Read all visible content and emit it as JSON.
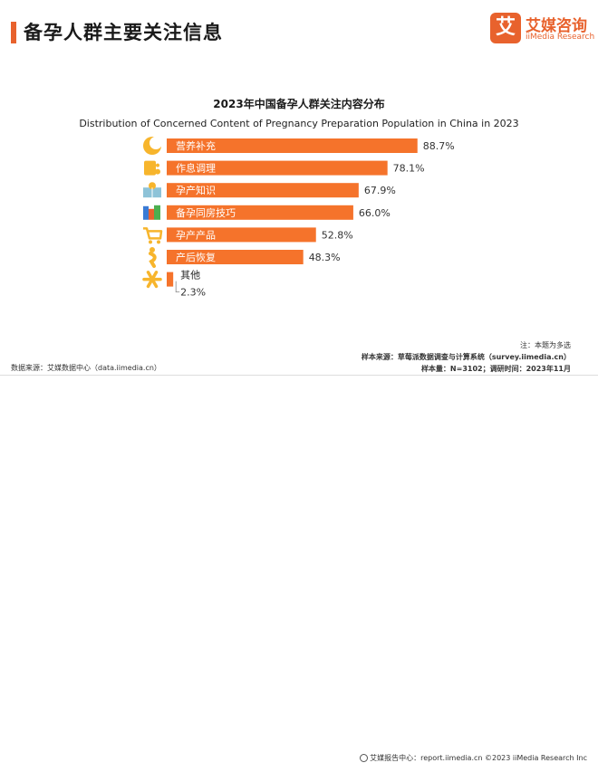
{
  "header": {
    "title": "备孕人群主要关注信息",
    "logo_mark": "艾",
    "logo_cn": "艾媒咨询",
    "logo_en": "iiMedia Research"
  },
  "colors": {
    "accent": "#e8622d",
    "bar": "#f5732b",
    "icon": "#f7b52c",
    "text": "#222222"
  },
  "chart_data": {
    "type": "bar",
    "orientation": "horizontal",
    "title": "2023年中国备孕人群关注内容分布",
    "subtitle": "Distribution of Concerned Content of Pregnancy Preparation Population in China in 2023",
    "categories": [
      "营养补充",
      "作息调理",
      "孕产知识",
      "备孕同房技巧",
      "孕产产品",
      "产后恢复",
      "其他"
    ],
    "values": [
      88.7,
      78.1,
      67.9,
      66.0,
      52.8,
      48.3,
      2.3
    ],
    "data_labels": [
      "88.7%",
      "78.1%",
      "67.9%",
      "66.0%",
      "52.8%",
      "48.3%",
      "2.3%"
    ],
    "icons": [
      "moon-food-icon",
      "clock-schedule-icon",
      "book-knowledge-icon",
      "books-icon",
      "shopping-cart-icon",
      "recovery-figure-icon",
      "asterisk-icon"
    ],
    "xlim": [
      0,
      100
    ],
    "grid": false,
    "legend": "none"
  },
  "notes": {
    "note": "注：本题为多选",
    "sample_source": "样本来源：草莓派数据调查与计算系统（survey.iimedia.cn）",
    "sample_size": "样本量：N=3102；调研时间：2023年11月",
    "data_source": "数据来源：艾媒数据中心（data.iimedia.cn）"
  },
  "footer": {
    "text": "艾媒报告中心：report.iimedia.cn    ©2023   iiMedia Research  Inc"
  }
}
